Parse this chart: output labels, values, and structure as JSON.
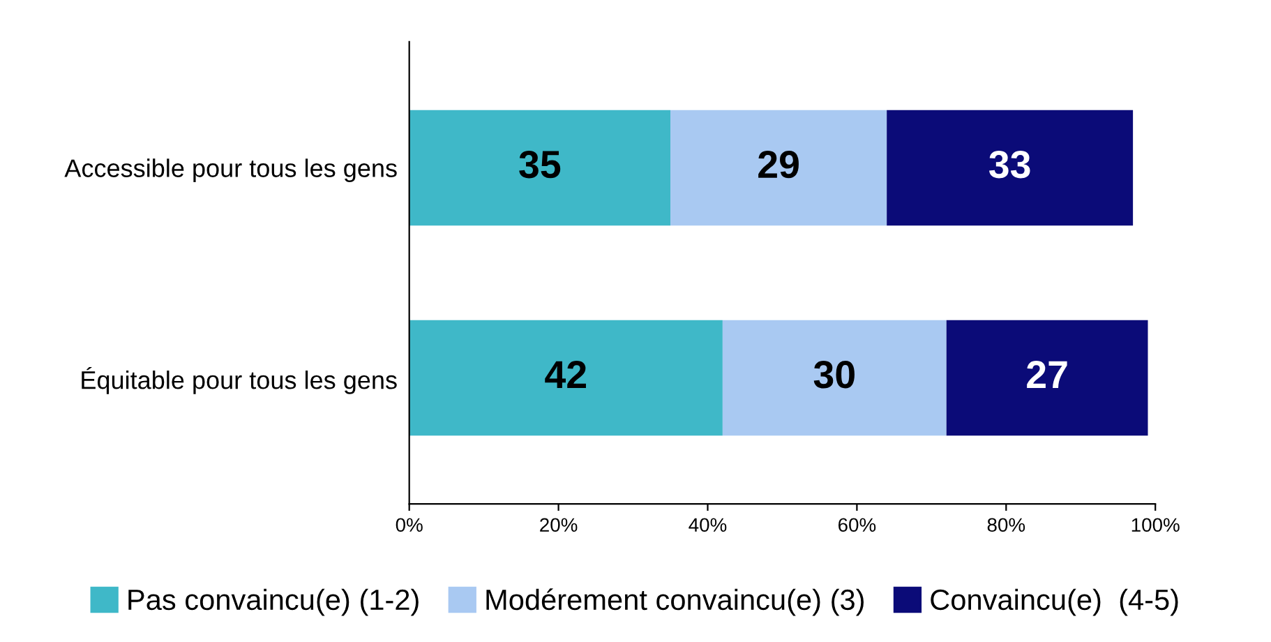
{
  "chart_data": {
    "type": "bar",
    "orientation": "horizontal",
    "stacked": true,
    "data_labels": true,
    "legend": "bottom",
    "grid": false,
    "categories": [
      "Accessible pour tous les gens",
      "Équitable pour tous les gens"
    ],
    "series": [
      {
        "name": "Pas convaincu(e) (1-2)",
        "color": "#3fb8c8",
        "values": [
          35,
          42
        ]
      },
      {
        "name": "Modérement convaincu(e) (3)",
        "color": "#a9c9f2",
        "values": [
          29,
          30
        ]
      },
      {
        "name": "Convaincu(e)  (4-5)",
        "color": "#0b0b78",
        "values": [
          33,
          27
        ]
      }
    ],
    "xlim": [
      0,
      100
    ],
    "xticks": [
      {
        "value": 0,
        "label": "0%"
      },
      {
        "value": 20,
        "label": "20%"
      },
      {
        "value": 40,
        "label": "40%"
      },
      {
        "value": 60,
        "label": "60%"
      },
      {
        "value": 80,
        "label": "80%"
      },
      {
        "value": 100,
        "label": "100%"
      }
    ]
  }
}
